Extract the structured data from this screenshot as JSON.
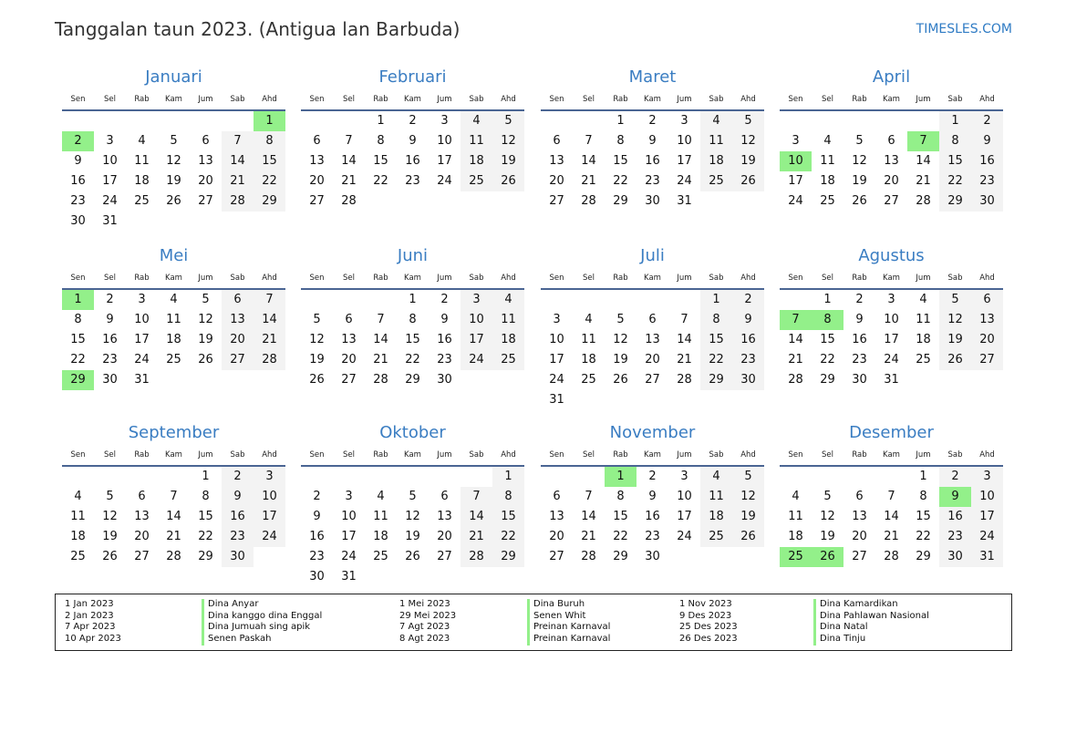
{
  "header": {
    "title": "Tanggalan taun 2023. (Antigua lan Barbuda)",
    "brand": "TIMESLES.COM"
  },
  "year": 2023,
  "weekdays": [
    "Sen",
    "Sel",
    "Rab",
    "Kam",
    "Jum",
    "Sab",
    "Ahd"
  ],
  "colors": {
    "accent": "#3a7dc2",
    "holiday": "#93f08a",
    "weekend": "#f3f3f3"
  },
  "months": [
    {
      "name": "Januari",
      "holidays": [
        1,
        2
      ]
    },
    {
      "name": "Februari",
      "holidays": []
    },
    {
      "name": "Maret",
      "holidays": []
    },
    {
      "name": "April",
      "holidays": [
        7,
        10
      ]
    },
    {
      "name": "Mei",
      "holidays": [
        1,
        29
      ]
    },
    {
      "name": "Juni",
      "holidays": []
    },
    {
      "name": "Juli",
      "holidays": []
    },
    {
      "name": "Agustus",
      "holidays": [
        7,
        8
      ]
    },
    {
      "name": "September",
      "holidays": []
    },
    {
      "name": "Oktober",
      "holidays": []
    },
    {
      "name": "November",
      "holidays": [
        1
      ]
    },
    {
      "name": "Desember",
      "holidays": [
        9,
        25,
        26
      ]
    }
  ],
  "legend": [
    [
      {
        "date": "1 Jan 2023",
        "name": "Dina Anyar"
      },
      {
        "date": "2 Jan 2023",
        "name": "Dina kanggo dina Enggal"
      },
      {
        "date": "7 Apr 2023",
        "name": "Dina Jumuah sing apik"
      },
      {
        "date": "10 Apr 2023",
        "name": "Senen Paskah"
      }
    ],
    [
      {
        "date": "1 Mei 2023",
        "name": "Dina Buruh"
      },
      {
        "date": "29 Mei 2023",
        "name": "Senen Whit"
      },
      {
        "date": "7 Agt 2023",
        "name": "Preinan Karnaval"
      },
      {
        "date": "8 Agt 2023",
        "name": "Preinan Karnaval"
      }
    ],
    [
      {
        "date": "1 Nov 2023",
        "name": "Dina Kamardikan"
      },
      {
        "date": "9 Des 2023",
        "name": "Dina Pahlawan Nasional"
      },
      {
        "date": "25 Des 2023",
        "name": "Dina Natal"
      },
      {
        "date": "26 Des 2023",
        "name": "Dina Tinju"
      }
    ]
  ]
}
